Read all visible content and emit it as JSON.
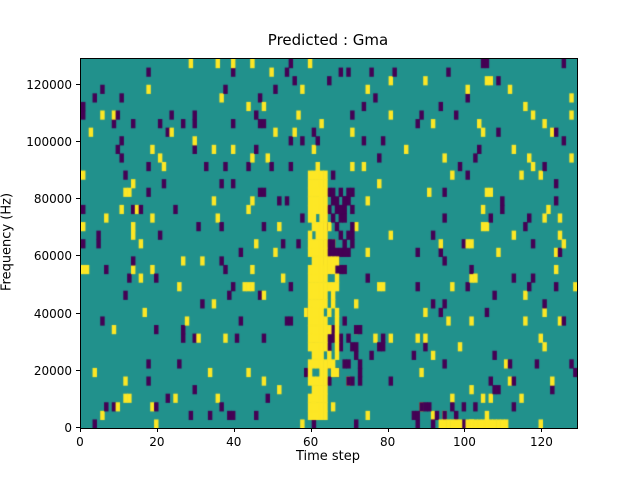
{
  "chart_data": {
    "type": "heatmap",
    "title": "Predicted : Gma",
    "xlabel": "Time step",
    "ylabel": "Frequency (Hz)",
    "xlim": [
      0,
      129
    ],
    "ylim": [
      0,
      129000
    ],
    "x_ticks": [
      0,
      20,
      40,
      60,
      80,
      100,
      120
    ],
    "y_ticks": [
      0,
      20000,
      40000,
      60000,
      80000,
      100000,
      120000
    ],
    "grid": {
      "cols": 129,
      "rows": 43
    },
    "colors": {
      "background": "#21918c",
      "high": "#fde725",
      "low": "#440154",
      "figure_bg": "#ffffff",
      "axis": "#000000"
    },
    "noise": {
      "seed": 42,
      "yellow_density": 0.035,
      "purple_density": 0.035
    },
    "features": [
      {
        "name": "purple-cluster-upper",
        "x": [
          63,
          71
        ],
        "freq": [
          56000,
          82000
        ],
        "color": "low",
        "density": 0.4
      },
      {
        "name": "purple-cluster-mid",
        "x": [
          63,
          73
        ],
        "freq": [
          16000,
          34000
        ],
        "color": "low",
        "density": 0.35
      },
      {
        "name": "yellow-band-fringe",
        "x": [
          64,
          67
        ],
        "freq": [
          20000,
          60000
        ],
        "color": "high",
        "density": 0.5
      },
      {
        "name": "yellow-band-core",
        "x": [
          59,
          64
        ],
        "freq": [
          3000,
          88000
        ],
        "color": "high",
        "density": 0.95
      },
      {
        "name": "bottom-purple-patch",
        "x": [
          86,
          100
        ],
        "freq": [
          2000,
          8000
        ],
        "color": "low",
        "density": 0.3
      },
      {
        "name": "bottom-yellow-strip",
        "x": [
          93,
          110
        ],
        "freq": [
          0,
          3000
        ],
        "color": "high",
        "density": 0.85
      }
    ],
    "legend": null
  }
}
